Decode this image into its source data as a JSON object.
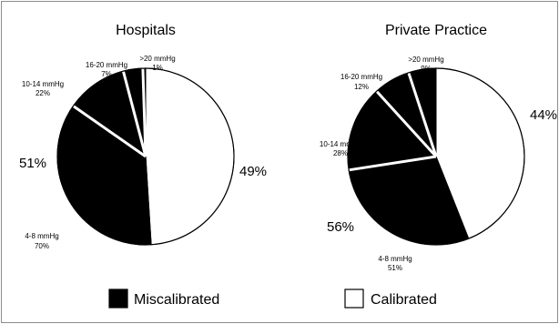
{
  "chart_data": [
    {
      "type": "pie",
      "title": "Hospitals",
      "slices": [
        {
          "label": "Calibrated",
          "value": 49,
          "color": "#ffffff"
        },
        {
          "label": "4-8 mmHg",
          "value": 35.7,
          "color": "#000000"
        },
        {
          "label": "10-14 mmHg",
          "value": 11.22,
          "color": "#000000"
        },
        {
          "label": "16-20 mmHg",
          "value": 3.57,
          "color": "#000000"
        },
        {
          "label": ">20 mmHg",
          "value": 0.51,
          "color": "#000000"
        }
      ],
      "group_labels": {
        "calibrated": "49%",
        "miscalibrated": "51%"
      },
      "breakdown": [
        {
          "range": "4-8 mmHg",
          "pct": "70%"
        },
        {
          "range": "10-14 mmHg",
          "pct": "22%"
        },
        {
          "range": "16-20 mmHg",
          "pct": "7%"
        },
        {
          "range": ">20 mmHg",
          "pct": "1%"
        }
      ]
    },
    {
      "type": "pie",
      "title": "Private Practice",
      "slices": [
        {
          "label": "Calibrated",
          "value": 44,
          "color": "#ffffff"
        },
        {
          "label": "4-8 mmHg",
          "value": 28.56,
          "color": "#000000"
        },
        {
          "label": "10-14 mmHg",
          "value": 15.68,
          "color": "#000000"
        },
        {
          "label": "16-20 mmHg",
          "value": 6.72,
          "color": "#000000"
        },
        {
          "label": ">20 mmHg",
          "value": 5.04,
          "color": "#000000"
        }
      ],
      "group_labels": {
        "calibrated": "44%",
        "miscalibrated": "56%"
      },
      "breakdown": [
        {
          "range": "4-8 mmHg",
          "pct": "51%"
        },
        {
          "range": "10-14 mmHg",
          "pct": "28%"
        },
        {
          "range": "16-20 mmHg",
          "pct": "12%"
        },
        {
          "range": ">20 mmHg",
          "pct": "9%"
        }
      ]
    }
  ],
  "legend": [
    {
      "label": "Miscalibrated",
      "color": "#000000"
    },
    {
      "label": "Calibrated",
      "color": "#ffffff"
    }
  ]
}
